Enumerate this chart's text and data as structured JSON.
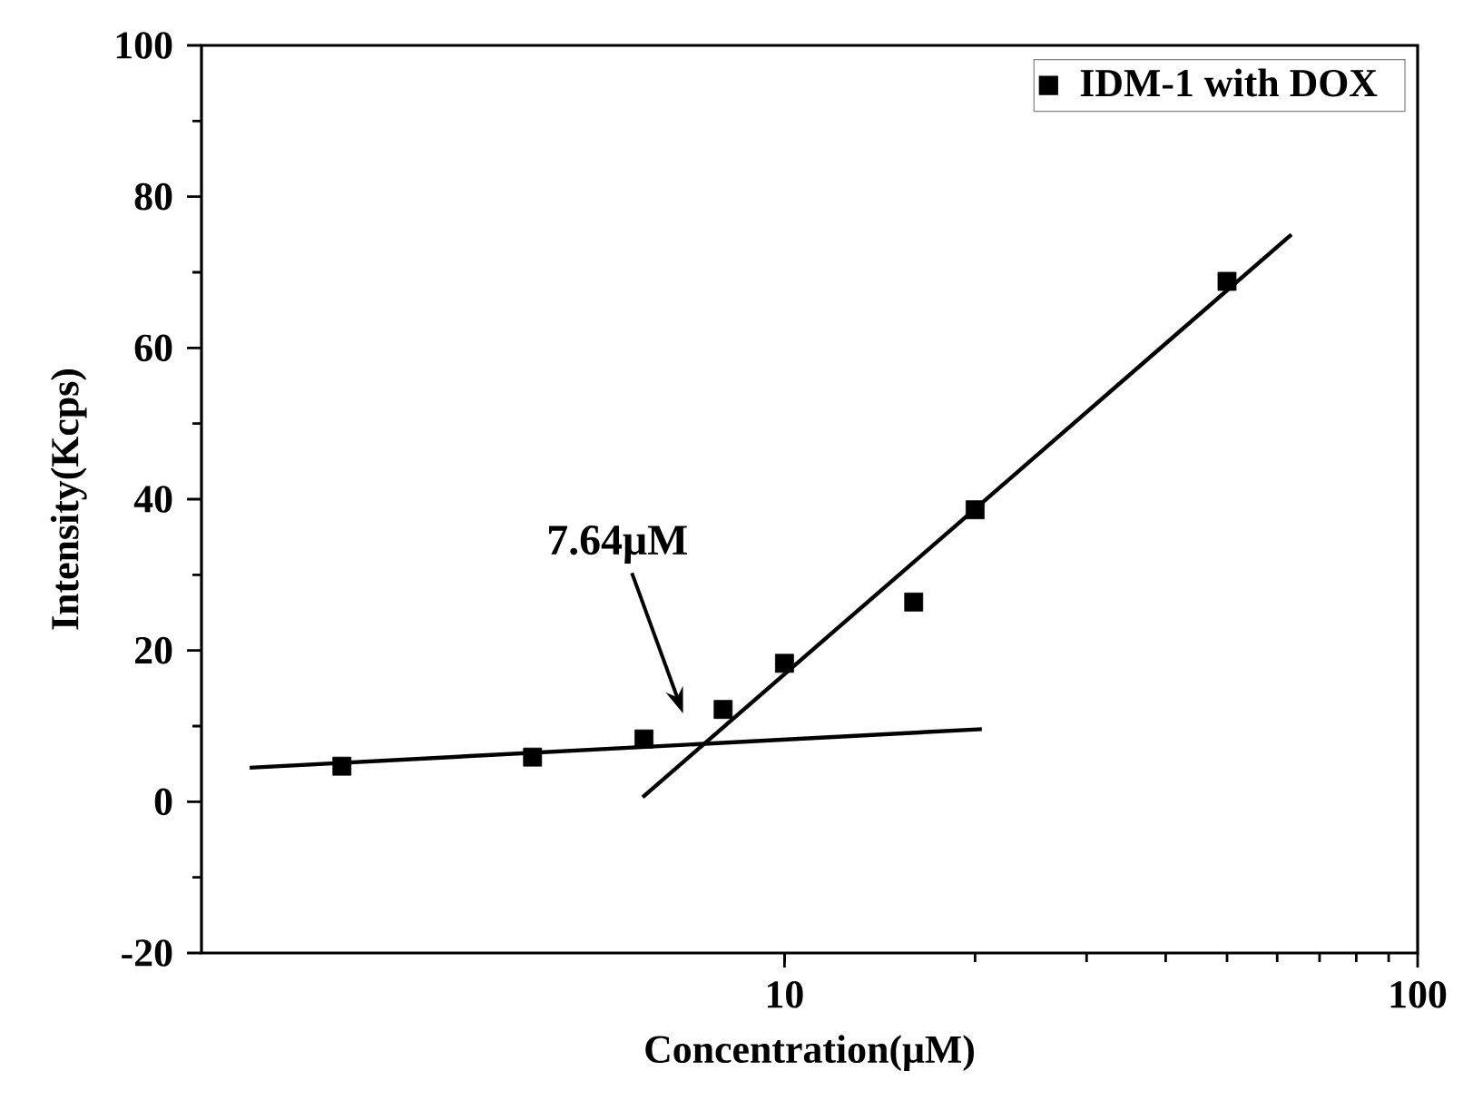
{
  "chart_data": {
    "type": "scatter",
    "xlabel": "Concentration(μM)",
    "ylabel": "Intensity(Kcps)",
    "log": "x",
    "xlim": [
      1.2,
      100
    ],
    "xticks": [
      10,
      100
    ],
    "ylim": [
      -20,
      100
    ],
    "yticks": [
      -20,
      0,
      20,
      40,
      60,
      80,
      100
    ],
    "legend": "top right",
    "marker": "square",
    "annotations": [
      "7.64μM"
    ],
    "series": [
      {
        "name": "IDM-1 with DOX",
        "color": "#000000",
        "x": [
          2,
          4,
          6,
          8,
          10,
          16,
          20,
          50
        ],
        "values": [
          4.7,
          5.9,
          8.3,
          12.2,
          18.3,
          26.4,
          38.6,
          68.8
        ]
      },
      {
        "type": "line",
        "marker": "none",
        "color": "#000000",
        "x": [
          1.43,
          20.5
        ],
        "values": [
          4.5,
          9.6
        ]
      },
      {
        "type": "line",
        "marker": "none",
        "color": "#000000",
        "x": [
          5.97,
          63.2
        ],
        "values": [
          0.6,
          75.0
        ]
      }
    ]
  }
}
